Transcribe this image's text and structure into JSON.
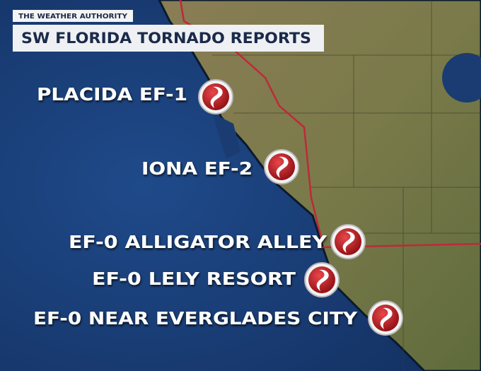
{
  "header": {
    "brand": "THE WEATHER AUTHORITY",
    "title": "SW FLORIDA TORNADO REPORTS"
  },
  "reports": [
    {
      "label": "PLACIDA EF-1"
    },
    {
      "label": "IONA EF-2"
    },
    {
      "label": "EF-0 ALLIGATOR ALLEY"
    },
    {
      "label": "EF-0 LELY RESORT"
    },
    {
      "label": "EF-0 NEAR EVERGLADES CITY"
    }
  ]
}
